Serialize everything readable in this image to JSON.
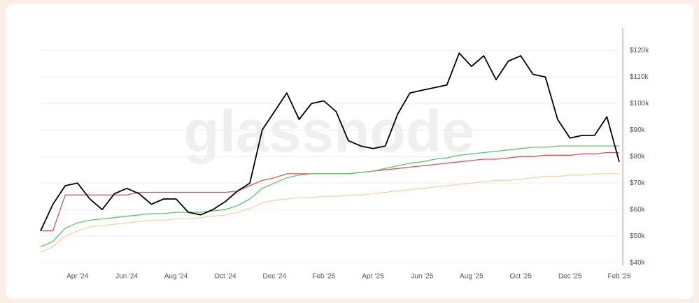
{
  "chart_data": {
    "type": "line",
    "watermark": "glassnode",
    "categories": [
      null,
      null,
      null,
      "Apr '24",
      null,
      null,
      null,
      "Jun '24",
      null,
      null,
      null,
      "Aug '24",
      null,
      null,
      null,
      "Oct '24",
      null,
      null,
      null,
      "Dec '24",
      null,
      null,
      null,
      "Feb '25",
      null,
      null,
      null,
      "Apr '25",
      null,
      null,
      null,
      "Jun '25",
      null,
      null,
      null,
      "Aug '25",
      null,
      null,
      null,
      "Oct '25",
      null,
      null,
      null,
      "Dec '25",
      null,
      null,
      null,
      "Feb '26"
    ],
    "series": [
      {
        "color": "#f5d2a8",
        "values": [
          44000,
          46000,
          50000,
          52000,
          53500,
          54000,
          54500,
          55000,
          55500,
          56000,
          56000,
          56500,
          56500,
          57000,
          57500,
          58000,
          59000,
          60500,
          62500,
          63500,
          64000,
          64500,
          64500,
          65000,
          65000,
          65500,
          65500,
          66000,
          66500,
          67000,
          67500,
          68000,
          68500,
          69000,
          69500,
          70000,
          70500,
          71000,
          71000,
          71500,
          72000,
          72500,
          72500,
          73000,
          73000,
          73500,
          73500,
          73500
        ]
      },
      {
        "color": "#d9535f",
        "values": [
          52000,
          52000,
          65500,
          65500,
          65500,
          65500,
          65500,
          65500,
          66500,
          66500,
          66500,
          66500,
          66500,
          66500,
          66500,
          66500,
          67000,
          69000,
          71000,
          72000,
          73500,
          73500,
          73500,
          73500,
          73500,
          73500,
          74000,
          74500,
          75000,
          75500,
          76000,
          76500,
          77000,
          77500,
          78000,
          78500,
          79000,
          79000,
          79500,
          80000,
          80000,
          80500,
          80500,
          80500,
          81000,
          81000,
          81500,
          81500
        ]
      },
      {
        "color": "#5cc56a",
        "values": [
          46000,
          48000,
          53000,
          55000,
          56000,
          56500,
          57000,
          57500,
          58000,
          58500,
          58500,
          59000,
          59000,
          59000,
          59500,
          60000,
          61500,
          64000,
          68000,
          70000,
          72000,
          73000,
          73500,
          73500,
          73500,
          73500,
          74000,
          74500,
          75500,
          76500,
          77500,
          78000,
          79000,
          79500,
          80500,
          81000,
          81500,
          82000,
          82500,
          83000,
          83500,
          83500,
          84000,
          84000,
          84000,
          84000,
          84000,
          84000
        ]
      },
      {
        "color": "#000000",
        "values": [
          52000,
          62000,
          69000,
          70000,
          64000,
          60000,
          66000,
          68000,
          66000,
          62000,
          64000,
          64000,
          59000,
          58000,
          60000,
          63000,
          67000,
          70000,
          90000,
          97000,
          104000,
          94000,
          100000,
          101000,
          97000,
          86000,
          84000,
          83000,
          84000,
          96000,
          104000,
          105000,
          106000,
          107000,
          119000,
          114000,
          118000,
          109000,
          116000,
          118000,
          111000,
          110000,
          94000,
          87000,
          88000,
          88000,
          95000,
          78000
        ]
      }
    ],
    "ylim": [
      39000,
      128500
    ],
    "yticks": [
      {
        "value": 40000,
        "label": "$40k"
      },
      {
        "value": 50000,
        "label": "$50k"
      },
      {
        "value": 60000,
        "label": "$60k"
      },
      {
        "value": 70000,
        "label": "$70k"
      },
      {
        "value": 80000,
        "label": "$80k"
      },
      {
        "value": 90000,
        "label": "$90k"
      },
      {
        "value": 100000,
        "label": "$100k"
      },
      {
        "value": 110000,
        "label": "$110k"
      },
      {
        "value": 120000,
        "label": "$120k"
      }
    ],
    "grid": true
  }
}
